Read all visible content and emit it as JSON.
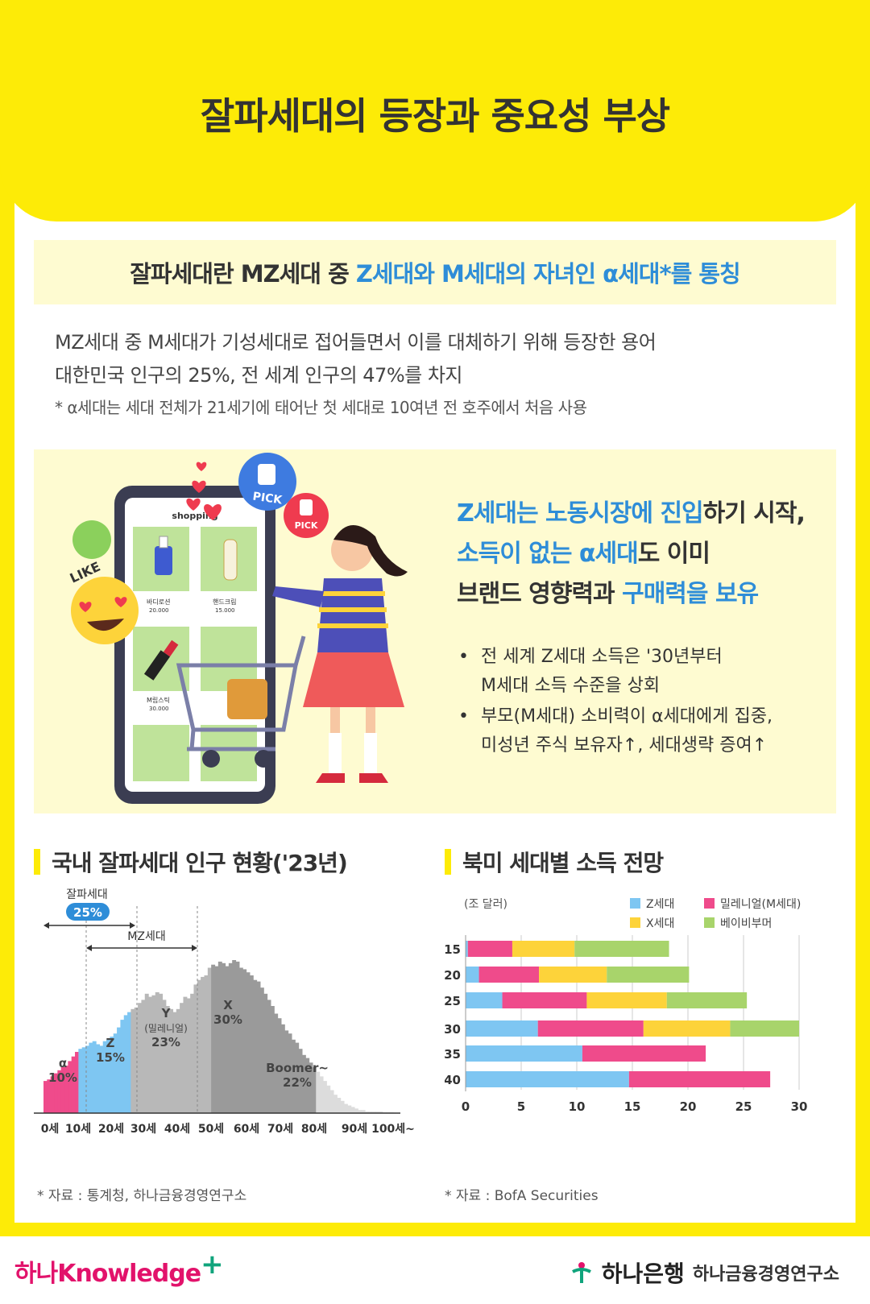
{
  "title": "잘파세대의 등장과 중요성 부상",
  "definition": {
    "prefix": "잘파세대란 MZ세대 중 ",
    "highlight": "Z세대와 M세대의 자녀인 α세대*를 통칭"
  },
  "descriptions": [
    "MZ세대 중 M세대가 기성세대로 접어들면서 이를 대체하기 위해 등장한 용어",
    "대한민국 인구의 25%, 전 세계 인구의 47%를 차지"
  ],
  "footnote": "* α세대는 세대 전체가 21세기에 태어난 첫 세대로 10여년 전 호주에서 처음 사용",
  "illustration": {
    "shop_title": "shopping",
    "product1_name": "바디로션",
    "product1_price": "20.000",
    "product2_name": "핸드크림",
    "product2_price": "15.000",
    "product3_name": "M립스틱",
    "product3_price": "30.000",
    "pick1": "PICK",
    "pick2": "PICK",
    "like": "LIKE"
  },
  "headline": {
    "l1_hl": "Z세대는 노동시장에 진입",
    "l1_rest": "하기 시작,",
    "l2_hl": "소득이 없는 α세대",
    "l2_rest": "도 이미",
    "l3_pre": "브랜드 영향력과 ",
    "l3_hl": "구매력을 보유"
  },
  "bullets": [
    {
      "l1": "전 세계 Z세대 소득은 '30년부터",
      "l2": "M세대 소득 수준을 상회"
    },
    {
      "l1": "부모(M세대) 소비력이 α세대에게 집중,",
      "l2": "미성년 주식 보유자↑, 세대생략 증여↑"
    }
  ],
  "section1_title": "국내 잘파세대 인구 현황('23년)",
  "section2_title": "북미 세대별 소득 전망",
  "source1": "* 자료 : 통계청, 하나금융경영연구소",
  "source2": "* 자료 : BofA Securities",
  "chart_data": [
    {
      "type": "area",
      "title": "국내 잘파세대 인구 현황('23년)",
      "xlabels": [
        "0세",
        "10세",
        "20세",
        "30세",
        "40세",
        "50세",
        "60세",
        "70세",
        "80세",
        "90세",
        "100세~"
      ],
      "groups": [
        {
          "name": "α",
          "share": "10%",
          "color": "#ef4b8b"
        },
        {
          "name": "Z",
          "share": "15%",
          "color": "#7ec6f2"
        },
        {
          "name": "Y",
          "sub": "(밀레니얼)",
          "share": "23%",
          "color": "#b8b8b8"
        },
        {
          "name": "X",
          "share": "30%",
          "color": "#9a9a9a"
        },
        {
          "name": "Boomer~",
          "share": "22%",
          "color": "#dcdcdc"
        }
      ],
      "zalpha_label": "잘파세대",
      "zalpha_share": "25%",
      "mz_label": "MZ세대",
      "profile": [
        0.21,
        0.22,
        0.24,
        0.26,
        0.28,
        0.3,
        0.31,
        0.34,
        0.37,
        0.4,
        0.42,
        0.43,
        0.44,
        0.46,
        0.47,
        0.45,
        0.44,
        0.47,
        0.48,
        0.5,
        0.52,
        0.56,
        0.61,
        0.64,
        0.66,
        0.68,
        0.69,
        0.72,
        0.74,
        0.78,
        0.76,
        0.77,
        0.79,
        0.78,
        0.74,
        0.7,
        0.68,
        0.66,
        0.68,
        0.72,
        0.76,
        0.75,
        0.78,
        0.84,
        0.87,
        0.89,
        0.9,
        0.95,
        0.97,
        0.96,
        0.99,
        0.98,
        0.96,
        0.98,
        1.0,
        0.99,
        0.95,
        0.94,
        0.92,
        0.9,
        0.87,
        0.86,
        0.82,
        0.78,
        0.74,
        0.7,
        0.65,
        0.62,
        0.58,
        0.54,
        0.52,
        0.48,
        0.46,
        0.42,
        0.38,
        0.36,
        0.33,
        0.3,
        0.27,
        0.24,
        0.21,
        0.18,
        0.15,
        0.12,
        0.1,
        0.08,
        0.06,
        0.05,
        0.04,
        0.03,
        0.02,
        0.02,
        0.01,
        0.01,
        0.01,
        0.01,
        0.01,
        0.005,
        0.005,
        0.005,
        0.003
      ]
    },
    {
      "type": "bar",
      "orientation": "horizontal",
      "stacked": true,
      "title": "북미 세대별 소득 전망",
      "unit": "(조 달러)",
      "categories": [
        "2015",
        "2020",
        "2025",
        "2030",
        "2035",
        "2040"
      ],
      "xlim": [
        0,
        30
      ],
      "xticks": [
        "0",
        "5",
        "10",
        "15",
        "20",
        "25",
        "30"
      ],
      "series": [
        {
          "name": "Z세대",
          "color": "#7ec6f2",
          "values": [
            0.2,
            1.2,
            3.3,
            6.5,
            10.5,
            14.7
          ]
        },
        {
          "name": "밀레니얼(M세대)",
          "color": "#ef4b8b",
          "values": [
            4.0,
            5.4,
            7.6,
            9.5,
            11.1,
            12.7
          ]
        },
        {
          "name": "X세대",
          "color": "#fdd33a",
          "values": [
            5.6,
            6.1,
            7.2,
            7.8,
            0,
            0
          ]
        },
        {
          "name": "베이비부머",
          "color": "#a8d46b",
          "values": [
            8.5,
            7.4,
            7.2,
            6.2,
            0,
            0
          ]
        }
      ],
      "legend": "top-right"
    }
  ],
  "footer": {
    "logo_text": "하나Knowledge",
    "logo_plus": "+",
    "bank": "하나은행",
    "institute": "하나금융경영연구소"
  }
}
